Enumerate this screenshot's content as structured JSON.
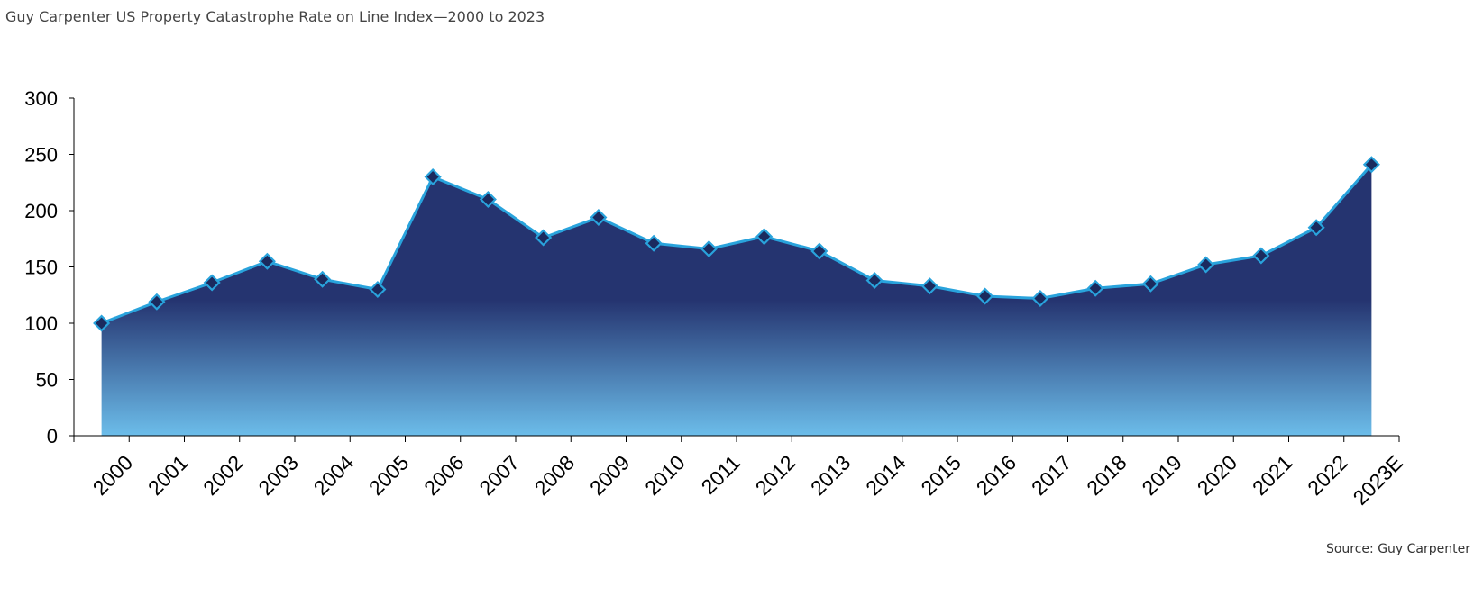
{
  "title": "Guy Carpenter US Property Catastrophe Rate on Line Index—2000 to 2023",
  "source": "Source: Guy Carpenter",
  "chart_data": {
    "type": "area",
    "title": "Guy Carpenter US Property Catastrophe Rate on Line Index—2000 to 2023",
    "xlabel": "",
    "ylabel": "",
    "ylim": [
      0,
      300
    ],
    "yticks": [
      0,
      50,
      100,
      150,
      200,
      250,
      300
    ],
    "grid": false,
    "legend": "none",
    "categories": [
      "2000",
      "2001",
      "2002",
      "2003",
      "2004",
      "2005",
      "2006",
      "2007",
      "2008",
      "2009",
      "2010",
      "2011",
      "2012",
      "2013",
      "2014",
      "2015",
      "2016",
      "2017",
      "2018",
      "2019",
      "2020",
      "2021",
      "2022",
      "2023E"
    ],
    "series": [
      {
        "values": [
          100,
          119,
          136,
          155,
          139,
          130,
          230,
          210,
          176,
          194,
          171,
          166,
          177,
          164,
          138,
          133,
          124,
          122,
          131,
          135,
          152,
          160,
          185,
          241
        ]
      }
    ],
    "colors": {
      "fill_top": "#253470",
      "fill_mid": "#253470",
      "fill_bottom": "#6cbdea",
      "line": "#29a3dc",
      "marker_fill": "#1b2a5e",
      "marker_stroke": "#29a3dc"
    },
    "marker": "diamond-icon"
  }
}
